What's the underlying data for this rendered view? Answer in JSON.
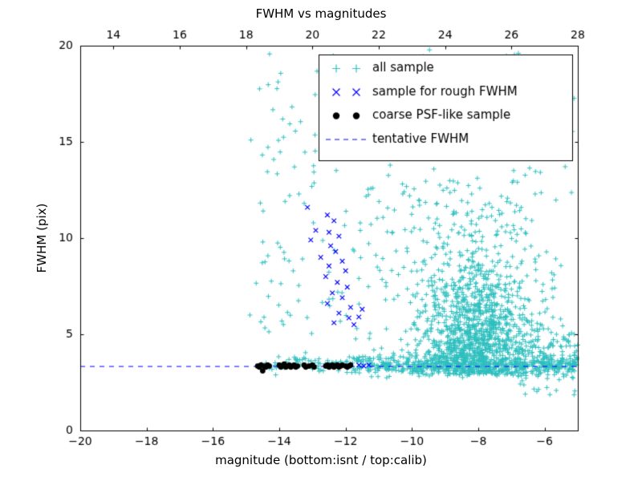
{
  "chart_data": {
    "type": "scatter",
    "title": "FWHM vs magnitudes",
    "xlabel": "magnitude (bottom:isnt / top:calib)",
    "ylabel": "FWHM (pix)",
    "xlim": [
      -20,
      -5
    ],
    "ylim": [
      0,
      20
    ],
    "x_ticks_bottom": [
      -20,
      -18,
      -16,
      -14,
      -12,
      -10,
      -8,
      -6
    ],
    "x_ticks_top_calib": [
      14,
      16,
      18,
      20,
      22,
      24,
      26,
      28
    ],
    "calib_offset": 33,
    "y_ticks": [
      0,
      5,
      10,
      15,
      20
    ],
    "grid": false,
    "background_color": "#ffffff",
    "axes_color": "#000000",
    "tentative_fwhm": 3.35,
    "legend": {
      "location": "upper right"
    },
    "seed": 123456,
    "series": [
      {
        "name": "all sample",
        "marker": "plus",
        "color": "#2fbfbf",
        "clusters": [
          {
            "count": 550,
            "x": {
              "dist": "uniform",
              "a": -11.8,
              "b": -5.0
            },
            "y": {
              "dist": "normal",
              "mu": 3.4,
              "sigma": 0.28,
              "min": 2.2,
              "max": 4.8
            }
          },
          {
            "count": 70,
            "x": {
              "dist": "uniform",
              "a": -14.6,
              "b": -11.8
            },
            "y": {
              "dist": "normal",
              "mu": 3.45,
              "sigma": 0.22,
              "min": 2.8,
              "max": 4.4
            }
          },
          {
            "count": 1100,
            "x": {
              "dist": "normal",
              "mu": -8.1,
              "sigma": 0.9,
              "min": -11.2,
              "max": -5.05
            },
            "y": {
              "dist": "halfnormal",
              "base": 2.9,
              "sigma": 2.8,
              "max": 16.0
            }
          },
          {
            "count": 260,
            "x": {
              "dist": "normal",
              "mu": -8.2,
              "sigma": 1.3,
              "min": -11.5,
              "max": -5.05
            },
            "y": {
              "dist": "uniform",
              "a": 4.0,
              "b": 13.0
            }
          },
          {
            "count": 140,
            "x": {
              "dist": "uniform",
              "a": -14.9,
              "b": -10.5
            },
            "y": {
              "dist": "uniform",
              "a": 3.2,
              "b": 19.6
            }
          },
          {
            "count": 60,
            "x": {
              "dist": "uniform",
              "a": -10.5,
              "b": -5.1
            },
            "y": {
              "dist": "uniform",
              "a": 13.0,
              "b": 19.8
            }
          },
          {
            "count": 120,
            "x": {
              "dist": "uniform",
              "a": -6.8,
              "b": -5.0
            },
            "y": {
              "dist": "normal",
              "mu": 3.6,
              "sigma": 0.9,
              "min": 1.8,
              "max": 8.0
            }
          }
        ]
      },
      {
        "name": "sample for rough FWHM",
        "marker": "x",
        "color": "#0000ff",
        "points": [
          [
            -13.15,
            11.6
          ],
          [
            -12.55,
            11.2
          ],
          [
            -12.35,
            10.9
          ],
          [
            -12.9,
            10.4
          ],
          [
            -12.5,
            10.3
          ],
          [
            -12.2,
            10.1
          ],
          [
            -13.05,
            9.9
          ],
          [
            -12.45,
            9.6
          ],
          [
            -12.3,
            9.3
          ],
          [
            -12.75,
            9.0
          ],
          [
            -12.1,
            8.8
          ],
          [
            -12.5,
            8.55
          ],
          [
            -12.0,
            8.3
          ],
          [
            -12.6,
            8.0
          ],
          [
            -12.25,
            7.7
          ],
          [
            -11.95,
            7.45
          ],
          [
            -12.4,
            7.15
          ],
          [
            -12.1,
            6.9
          ],
          [
            -12.55,
            6.6
          ],
          [
            -11.85,
            6.4
          ],
          [
            -12.2,
            6.1
          ],
          [
            -11.9,
            5.85
          ],
          [
            -12.35,
            5.6
          ],
          [
            -11.75,
            5.5
          ],
          [
            -11.6,
            5.9
          ],
          [
            -11.5,
            6.3
          ],
          [
            -11.6,
            3.4
          ],
          [
            -11.45,
            3.35
          ],
          [
            -11.3,
            3.4
          ]
        ]
      },
      {
        "name": "coarse PSF-like sample",
        "marker": "dot",
        "color": "#000000",
        "points": [
          [
            -14.65,
            3.35
          ],
          [
            -14.6,
            3.3
          ],
          [
            -14.55,
            3.4
          ],
          [
            -14.5,
            3.1
          ],
          [
            -14.45,
            3.35
          ],
          [
            -14.4,
            3.3
          ],
          [
            -14.35,
            3.4
          ],
          [
            -14.3,
            3.35
          ],
          [
            -14.0,
            3.4
          ],
          [
            -13.95,
            3.3
          ],
          [
            -13.9,
            3.35
          ],
          [
            -13.85,
            3.45
          ],
          [
            -13.8,
            3.3
          ],
          [
            -13.75,
            3.35
          ],
          [
            -13.7,
            3.4
          ],
          [
            -13.65,
            3.3
          ],
          [
            -13.6,
            3.35
          ],
          [
            -13.55,
            3.4
          ],
          [
            -13.5,
            3.3
          ],
          [
            -13.45,
            3.35
          ],
          [
            -13.25,
            3.4
          ],
          [
            -13.2,
            3.3
          ],
          [
            -13.1,
            3.35
          ],
          [
            -13.0,
            3.4
          ],
          [
            -12.95,
            3.3
          ],
          [
            -12.6,
            3.35
          ],
          [
            -12.55,
            3.4
          ],
          [
            -12.5,
            3.3
          ],
          [
            -12.45,
            3.35
          ],
          [
            -12.4,
            3.4
          ],
          [
            -12.35,
            3.3
          ],
          [
            -12.3,
            3.35
          ],
          [
            -12.25,
            3.4
          ],
          [
            -12.2,
            3.3
          ],
          [
            -12.15,
            3.35
          ],
          [
            -12.1,
            3.4
          ],
          [
            -12.0,
            3.35
          ],
          [
            -11.95,
            3.3
          ],
          [
            -11.9,
            3.35
          ],
          [
            -11.85,
            3.4
          ]
        ]
      },
      {
        "name": "tentative FWHM",
        "marker": "dashed-line",
        "color": "#0000ff",
        "y": 3.35
      }
    ]
  }
}
